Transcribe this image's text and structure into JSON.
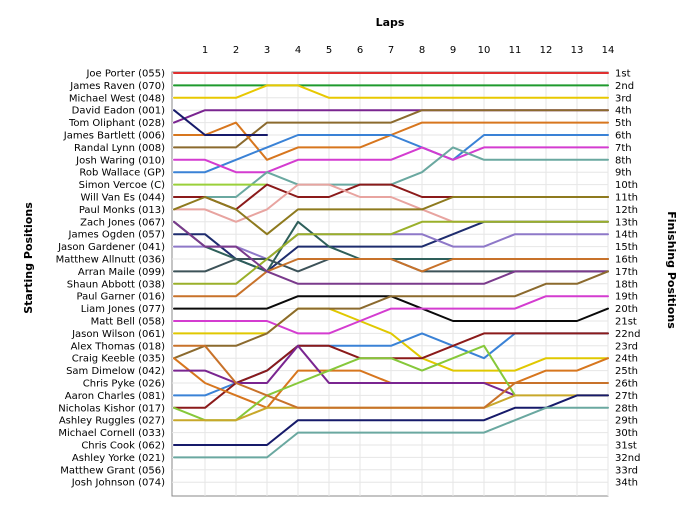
{
  "chart_data": {
    "type": "line",
    "title": "Laps",
    "ylabel_left": "Starting Positions",
    "ylabel_right": "Finishing Positions",
    "x": [
      0,
      1,
      2,
      3,
      4,
      5,
      6,
      7,
      8,
      9,
      10,
      11,
      12,
      13,
      14
    ],
    "xticks": [
      "1",
      "2",
      "3",
      "4",
      "5",
      "6",
      "7",
      "8",
      "9",
      "10",
      "11",
      "12",
      "13",
      "14"
    ],
    "ylim": [
      1,
      34
    ],
    "y_inverted": true,
    "grid": true,
    "start_labels": [
      "Joe Porter (055)",
      "James Raven (070)",
      "Michael West (048)",
      "David Eadon (001)",
      "Tom Oliphant (028)",
      "James Bartlett (006)",
      "Randal Lynn (008)",
      "Josh Waring (010)",
      "Rob Wallace (GP)",
      "Simon Vercoe (C)",
      "Will Van Es (044)",
      "Paul Monks (013)",
      "Zach Jones (067)",
      "James Ogden (057)",
      "Jason Gardener (041)",
      "Matthew Allnutt (036)",
      "Arran Maile (099)",
      "Shaun Abbott (038)",
      "Paul Garner (016)",
      "Liam Jones (077)",
      "Matt Bell (058)",
      "Jason Wilson (061)",
      "Alex Thomas (018)",
      "Craig Keeble (035)",
      "Sam Dimelow (042)",
      "Chris Pyke (026)",
      "Aaron Charles (081)",
      "Nicholas Kishor (017)",
      "Ashley Ruggles (027)",
      "Michael Cornell (033)",
      "Chris Cook (062)",
      "Ashley Yorke (021)",
      "Matthew Grant (056)",
      "Josh Johnson (074)"
    ],
    "finish_labels": [
      "1st",
      "2nd",
      "3rd",
      "4th",
      "5th",
      "6th",
      "7th",
      "8th",
      "9th",
      "10th",
      "11th",
      "12th",
      "13th",
      "14th",
      "15th",
      "16th",
      "17th",
      "18th",
      "19th",
      "20th",
      "21st",
      "22nd",
      "23rd",
      "24th",
      "25th",
      "26th",
      "27th",
      "28th",
      "29th",
      "30th",
      "31st",
      "32nd",
      "33rd",
      "34th"
    ],
    "series": [
      {
        "color": "#e03030",
        "values": [
          1,
          1,
          1,
          1,
          1,
          1,
          1,
          1,
          1,
          1,
          1,
          1,
          1,
          1,
          1
        ]
      },
      {
        "color": "#1f9a2e",
        "values": [
          2,
          2,
          2,
          2,
          2,
          2,
          2,
          2,
          2,
          2,
          2,
          2,
          2,
          2,
          2
        ]
      },
      {
        "color": "#e8c800",
        "values": [
          3,
          3,
          3,
          2,
          2,
          3,
          3,
          3,
          3,
          3,
          3,
          3,
          3,
          3,
          3
        ]
      },
      {
        "color": "#7a2590",
        "values": [
          5,
          4,
          4,
          4,
          4,
          4,
          4,
          4,
          4,
          4,
          4,
          4,
          4,
          4,
          4
        ]
      },
      {
        "color": "#8b6a2e",
        "values": [
          7,
          7,
          7,
          5,
          5,
          5,
          5,
          5,
          4,
          4,
          4,
          4,
          4,
          4,
          4
        ]
      },
      {
        "color": "#d7761e",
        "values": [
          6,
          6,
          5,
          8,
          7,
          7,
          7,
          6,
          5,
          5,
          5,
          5,
          5,
          5,
          5
        ]
      },
      {
        "color": "#3a82d6",
        "values": [
          9,
          9,
          8,
          7,
          6,
          6,
          6,
          6,
          7,
          8,
          6,
          6,
          6,
          6,
          6
        ]
      },
      {
        "color": "#d43cd0",
        "values": [
          8,
          8,
          9,
          9,
          8,
          8,
          8,
          8,
          7,
          8,
          7,
          7,
          7,
          7,
          7
        ]
      },
      {
        "color": "#6aa8a0",
        "values": [
          11,
          11,
          11,
          9,
          10,
          10,
          10,
          10,
          9,
          7,
          8,
          8,
          8,
          8,
          8
        ]
      },
      {
        "color": "#161a6a",
        "values": [
          4,
          6,
          6,
          6,
          null,
          null,
          null,
          null,
          null,
          null,
          null,
          null,
          null,
          null,
          null
        ]
      },
      {
        "color": "#9ad03a",
        "values": [
          10,
          10,
          10,
          10,
          null,
          null,
          null,
          null,
          null,
          null,
          null,
          null,
          null,
          null,
          null
        ]
      },
      {
        "color": "#8b1a1a",
        "values": [
          11,
          11,
          12,
          10,
          11,
          11,
          10,
          10,
          11,
          11,
          11,
          11,
          11,
          11,
          11
        ]
      },
      {
        "color": "#e8a4a0",
        "values": [
          12,
          12,
          13,
          12,
          10,
          10,
          11,
          11,
          12,
          13,
          13,
          null,
          null,
          null,
          null
        ]
      },
      {
        "color": "#8e7a1e",
        "values": [
          12,
          11,
          12,
          14,
          12,
          12,
          12,
          12,
          12,
          11,
          11,
          11,
          11,
          11,
          11
        ]
      },
      {
        "color": "#1e2c6e",
        "values": [
          14,
          14,
          16,
          17,
          15,
          15,
          15,
          15,
          15,
          14,
          13,
          13,
          13,
          13,
          13
        ]
      },
      {
        "color": "#8e78c8",
        "values": [
          15,
          15,
          15,
          16,
          14,
          14,
          14,
          14,
          14,
          15,
          15,
          14,
          14,
          14,
          14
        ]
      },
      {
        "color": "#2e5f5a",
        "values": [
          13,
          15,
          16,
          17,
          13,
          15,
          16,
          16,
          16,
          16,
          16,
          16,
          16,
          16,
          16
        ]
      },
      {
        "color": "#3c5258",
        "values": [
          17,
          17,
          16,
          16,
          17,
          16,
          16,
          16,
          17,
          17,
          17,
          17,
          17,
          17,
          17
        ]
      },
      {
        "color": "#c8722a",
        "values": [
          19,
          19,
          19,
          17,
          16,
          16,
          16,
          16,
          17,
          16,
          16,
          16,
          16,
          16,
          16
        ]
      },
      {
        "color": "#9ab02a",
        "values": [
          18,
          18,
          18,
          16,
          14,
          14,
          14,
          14,
          13,
          13,
          13,
          13,
          13,
          13,
          13
        ]
      },
      {
        "color": "#7a3a8c",
        "values": [
          13,
          15,
          15,
          17,
          18,
          18,
          18,
          18,
          18,
          18,
          18,
          17,
          17,
          17,
          17
        ]
      },
      {
        "color": "#0a0a0a",
        "values": [
          20,
          20,
          20,
          20,
          19,
          19,
          19,
          19,
          20,
          21,
          21,
          21,
          21,
          21,
          20
        ]
      },
      {
        "color": "#e0c800",
        "values": [
          22,
          22,
          22,
          22,
          20,
          20,
          21,
          22,
          24,
          25,
          25,
          25,
          24,
          24,
          24
        ]
      },
      {
        "color": "#d43cd0",
        "values": [
          21,
          21,
          21,
          21,
          22,
          22,
          21,
          20,
          20,
          20,
          20,
          20,
          19,
          19,
          19
        ]
      },
      {
        "color": "#8b6a2e",
        "values": [
          24,
          23,
          23,
          22,
          20,
          20,
          20,
          19,
          19,
          19,
          19,
          19,
          18,
          18,
          17
        ]
      },
      {
        "color": "#3a82d6",
        "values": [
          27,
          27,
          26,
          25,
          23,
          23,
          23,
          23,
          22,
          23,
          24,
          22,
          22,
          22,
          22
        ]
      },
      {
        "color": "#8b1a1a",
        "values": [
          28,
          28,
          26,
          25,
          23,
          23,
          24,
          24,
          24,
          23,
          22,
          22,
          22,
          22,
          22
        ]
      },
      {
        "color": "#d7761e",
        "values": [
          24,
          26,
          27,
          28,
          25,
          25,
          25,
          26,
          26,
          26,
          26,
          26,
          25,
          25,
          24
        ]
      },
      {
        "color": "#7a2590",
        "values": [
          25,
          25,
          26,
          26,
          23,
          26,
          26,
          26,
          26,
          26,
          26,
          27,
          null,
          null,
          null
        ]
      },
      {
        "color": "#86c83a",
        "values": [
          28,
          29,
          29,
          27,
          26,
          25,
          24,
          24,
          25,
          24,
          23,
          27,
          null,
          null,
          null
        ]
      },
      {
        "color": "#c8a82a",
        "values": [
          29,
          29,
          29,
          28,
          28,
          28,
          28,
          28,
          28,
          28,
          28,
          27,
          27,
          27,
          27
        ]
      },
      {
        "color": "#c8722a",
        "values": [
          23,
          23,
          26,
          27,
          28,
          28,
          28,
          28,
          28,
          28,
          28,
          26,
          26,
          26,
          26
        ]
      },
      {
        "color": "#161a6a",
        "values": [
          31,
          31,
          31,
          31,
          29,
          29,
          29,
          29,
          29,
          29,
          29,
          28,
          28,
          27,
          27
        ]
      },
      {
        "color": "#6aa8a0",
        "values": [
          32,
          32,
          32,
          32,
          30,
          30,
          30,
          30,
          30,
          30,
          30,
          29,
          28,
          28,
          28
        ]
      }
    ]
  }
}
